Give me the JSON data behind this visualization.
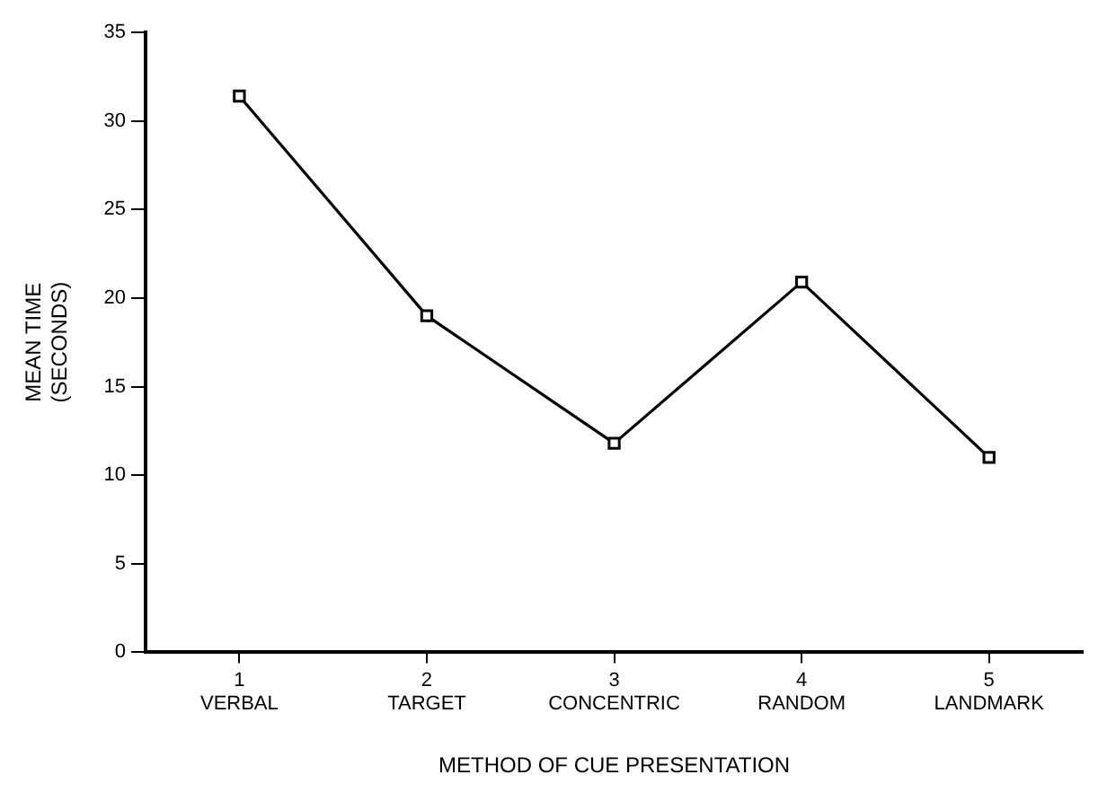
{
  "chart_data": {
    "type": "line",
    "xlabel": "METHOD OF CUE PRESENTATION",
    "ylabel": "MEAN TIME\n(SECONDS)",
    "categories": [
      "1\nVERBAL",
      "2\nTARGET",
      "3\nCONCENTRIC",
      "4\nRANDOM",
      "5\nLANDMARK"
    ],
    "series": [
      {
        "color": "#000000",
        "values": [
          31.4,
          19.0,
          11.8,
          20.9,
          11.0
        ]
      }
    ],
    "ylim": [
      0,
      35
    ],
    "yticks": [
      0,
      5,
      10,
      15,
      20,
      25,
      30,
      35
    ],
    "marker": "square",
    "line_style": "solid",
    "legend": false,
    "grid": false
  }
}
